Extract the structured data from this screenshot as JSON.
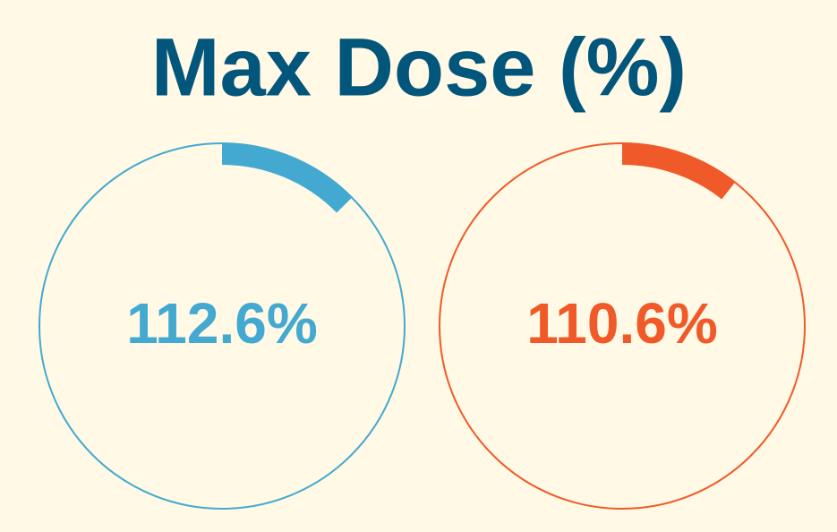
{
  "chart_data": {
    "type": "gauge",
    "title": "Max Dose (%)",
    "values": [
      112.6,
      110.6
    ],
    "value_labels": [
      "112.6%",
      "110.6%"
    ],
    "colors": [
      "#43a9d1",
      "#f05a28"
    ],
    "lim": [
      100,
      200
    ]
  }
}
